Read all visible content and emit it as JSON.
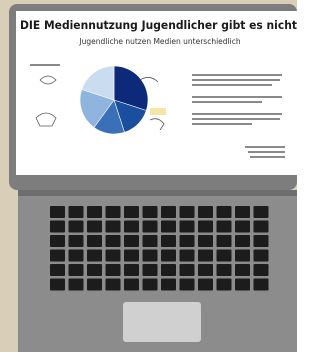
{
  "slide": {
    "title": "DIE Mediennutzung Jugendlicher gibt es nicht",
    "subtitle": "Jugendliche nutzen Medien unterschiedlich",
    "pie": {
      "values": [
        30,
        15,
        15,
        20,
        20
      ],
      "colors": [
        "#0d2a7a",
        "#1a4fa0",
        "#3a70b8",
        "#8fb4de",
        "#c9dcf0"
      ]
    }
  }
}
